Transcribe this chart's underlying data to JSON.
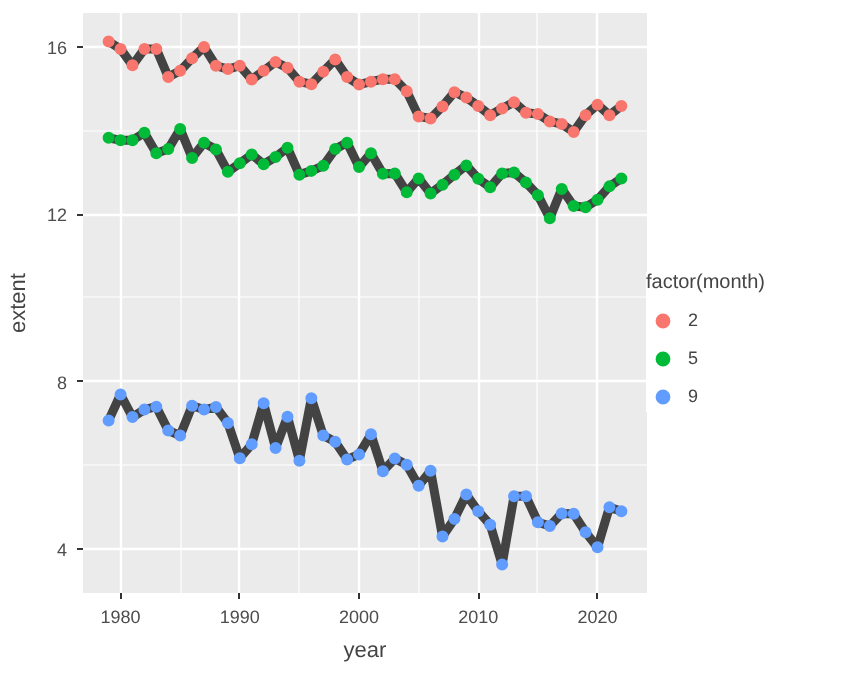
{
  "chart_data": {
    "type": "line",
    "xlabel": "year",
    "ylabel": "extent",
    "legend_title": "factor(month)",
    "legend": "right",
    "grid": true,
    "x": [
      1979,
      1980,
      1981,
      1982,
      1983,
      1984,
      1985,
      1986,
      1987,
      1988,
      1989,
      1990,
      1991,
      1992,
      1993,
      1994,
      1995,
      1996,
      1997,
      1998,
      1999,
      2000,
      2001,
      2002,
      2003,
      2004,
      2005,
      2006,
      2007,
      2008,
      2009,
      2010,
      2011,
      2012,
      2013,
      2014,
      2015,
      2016,
      2017,
      2018,
      2019,
      2020,
      2021,
      2022
    ],
    "xlim": [
      1976.85,
      2024.15
    ],
    "xticks": [
      1980,
      1990,
      2000,
      2010,
      2020
    ],
    "ylim": [
      2.95,
      16.8
    ],
    "yticks": [
      4,
      8,
      12,
      16
    ],
    "series": [
      {
        "marker": "none",
        "color": "#434343",
        "values": [
          16.12,
          15.94,
          15.55,
          15.94,
          15.94,
          15.27,
          15.42,
          15.72,
          15.99,
          15.54,
          15.46,
          15.54,
          15.21,
          15.42,
          15.63,
          15.49,
          15.16,
          15.1,
          15.4,
          15.69,
          15.27,
          15.09,
          15.16,
          15.22,
          15.22,
          14.93,
          14.33,
          14.28,
          14.57,
          14.91,
          14.78,
          14.58,
          14.36,
          14.52,
          14.67,
          14.42,
          14.39,
          14.21,
          14.15,
          13.96,
          14.36,
          14.61,
          14.36,
          14.58
        ]
      },
      {
        "marker": "none",
        "color": "#434343",
        "values": [
          13.82,
          13.76,
          13.76,
          13.94,
          13.45,
          13.55,
          14.03,
          13.34,
          13.7,
          13.54,
          13.01,
          13.21,
          13.42,
          13.19,
          13.36,
          13.58,
          12.94,
          13.03,
          13.15,
          13.55,
          13.7,
          13.12,
          13.45,
          12.96,
          12.97,
          12.52,
          12.85,
          12.49,
          12.7,
          12.94,
          13.16,
          12.84,
          12.64,
          12.97,
          12.99,
          12.75,
          12.45,
          11.9,
          12.6,
          12.19,
          12.16,
          12.34,
          12.66,
          12.85
        ]
      },
      {
        "marker": "none",
        "color": "#434343",
        "values": [
          7.07,
          7.69,
          7.15,
          7.33,
          7.4,
          6.83,
          6.71,
          7.42,
          7.33,
          7.39,
          7.01,
          6.17,
          6.5,
          7.48,
          6.41,
          7.16,
          6.11,
          7.6,
          6.71,
          6.56,
          6.14,
          6.26,
          6.74,
          5.86,
          6.16,
          6.01,
          5.51,
          5.87,
          4.3,
          4.72,
          5.3,
          4.9,
          4.58,
          3.63,
          5.26,
          5.26,
          4.64,
          4.55,
          4.85,
          4.84,
          4.4,
          4.04,
          5.0,
          4.9
        ]
      },
      {
        "type": "scatter",
        "marker": "circle",
        "name": "2",
        "color": "#f8766d",
        "values": [
          16.12,
          15.94,
          15.55,
          15.94,
          15.94,
          15.27,
          15.42,
          15.72,
          15.99,
          15.54,
          15.46,
          15.54,
          15.21,
          15.42,
          15.63,
          15.49,
          15.16,
          15.1,
          15.4,
          15.69,
          15.27,
          15.09,
          15.16,
          15.22,
          15.22,
          14.93,
          14.33,
          14.28,
          14.57,
          14.91,
          14.78,
          14.58,
          14.36,
          14.52,
          14.67,
          14.42,
          14.39,
          14.21,
          14.15,
          13.96,
          14.36,
          14.61,
          14.36,
          14.58
        ]
      },
      {
        "type": "scatter",
        "marker": "circle",
        "name": "5",
        "color": "#00ba38",
        "values": [
          13.82,
          13.76,
          13.76,
          13.94,
          13.45,
          13.55,
          14.03,
          13.34,
          13.7,
          13.54,
          13.01,
          13.21,
          13.42,
          13.19,
          13.36,
          13.58,
          12.94,
          13.03,
          13.15,
          13.55,
          13.7,
          13.12,
          13.45,
          12.96,
          12.97,
          12.52,
          12.85,
          12.49,
          12.7,
          12.94,
          13.16,
          12.84,
          12.64,
          12.97,
          12.99,
          12.75,
          12.45,
          11.9,
          12.6,
          12.19,
          12.16,
          12.34,
          12.66,
          12.85
        ]
      },
      {
        "type": "scatter",
        "marker": "circle",
        "name": "9",
        "color": "#619cff",
        "values": [
          7.07,
          7.69,
          7.15,
          7.33,
          7.4,
          6.83,
          6.71,
          7.42,
          7.33,
          7.39,
          7.01,
          6.17,
          6.5,
          7.48,
          6.41,
          7.16,
          6.11,
          7.6,
          6.71,
          6.56,
          6.14,
          6.26,
          6.74,
          5.86,
          6.16,
          6.01,
          5.51,
          5.87,
          4.3,
          4.72,
          5.3,
          4.9,
          4.58,
          3.63,
          5.26,
          5.26,
          4.64,
          4.55,
          4.85,
          4.84,
          4.4,
          4.04,
          5.0,
          4.9
        ]
      }
    ]
  }
}
